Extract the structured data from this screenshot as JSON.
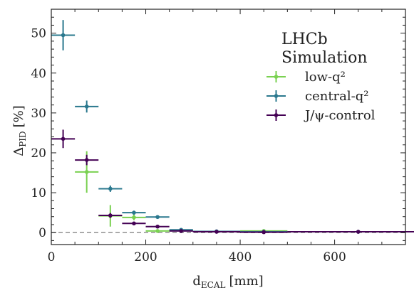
{
  "chart_data": {
    "type": "scatter",
    "title": "",
    "xlabel": "d",
    "xlabel_sub": "ECAL",
    "xlabel_unit": "[mm]",
    "ylabel": "Δ",
    "ylabel_sub": "PID",
    "ylabel_unit": "[%]",
    "xlim": [
      0,
      750
    ],
    "ylim": [
      -3,
      56
    ],
    "xticks": [
      0,
      200,
      400,
      600
    ],
    "yticks": [
      0,
      10,
      20,
      30,
      40,
      50
    ],
    "grid": false,
    "legend_placement": "top-right",
    "stamp": [
      "LHCb",
      "Simulation"
    ],
    "reference_line": {
      "y": 0,
      "style": "dashed",
      "color": "#999999"
    },
    "series": [
      {
        "name": "low-q²",
        "color": "#7ad151",
        "points": [
          {
            "x": 75,
            "xerr": 25,
            "y": 15.2,
            "yerr": 5.2
          },
          {
            "x": 125,
            "xerr": 25,
            "y": 4.2,
            "yerr": 2.7
          },
          {
            "x": 175,
            "xerr": 25,
            "y": 3.8,
            "yerr": 0.7
          },
          {
            "x": 225,
            "xerr": 25,
            "y": 0.4,
            "yerr": 0.4
          },
          {
            "x": 275,
            "xerr": 25,
            "y": 0.5,
            "yerr": 0.3
          },
          {
            "x": 450,
            "xerr": 50,
            "y": 0.4,
            "yerr": 0.3
          }
        ]
      },
      {
        "name": "central-q²",
        "color": "#2a788e",
        "points": [
          {
            "x": 25,
            "xerr": 25,
            "y": 49.5,
            "yerr": 3.8
          },
          {
            "x": 75,
            "xerr": 25,
            "y": 31.6,
            "yerr": 1.5
          },
          {
            "x": 125,
            "xerr": 25,
            "y": 11.0,
            "yerr": 0.8
          },
          {
            "x": 175,
            "xerr": 25,
            "y": 5.0,
            "yerr": 0.5
          },
          {
            "x": 225,
            "xerr": 25,
            "y": 3.9,
            "yerr": 0.4
          },
          {
            "x": 275,
            "xerr": 25,
            "y": 0.7,
            "yerr": 0.3
          },
          {
            "x": 350,
            "xerr": 50,
            "y": 0.3,
            "yerr": 0.2
          },
          {
            "x": 450,
            "xerr": 50,
            "y": 0.2,
            "yerr": 0.2
          },
          {
            "x": 650,
            "xerr": 150,
            "y": 0.2,
            "yerr": 0.2
          }
        ]
      },
      {
        "name": "J/ψ-control",
        "color": "#440154",
        "points": [
          {
            "x": 25,
            "xerr": 25,
            "y": 23.5,
            "yerr": 2.3
          },
          {
            "x": 75,
            "xerr": 25,
            "y": 18.2,
            "yerr": 1.3
          },
          {
            "x": 125,
            "xerr": 25,
            "y": 4.3,
            "yerr": 0.6
          },
          {
            "x": 175,
            "xerr": 25,
            "y": 2.3,
            "yerr": 0.3
          },
          {
            "x": 225,
            "xerr": 25,
            "y": 1.5,
            "yerr": 0.2
          },
          {
            "x": 275,
            "xerr": 25,
            "y": 0.4,
            "yerr": 0.1
          },
          {
            "x": 350,
            "xerr": 50,
            "y": 0.2,
            "yerr": 0.1
          },
          {
            "x": 450,
            "xerr": 50,
            "y": 0.1,
            "yerr": 0.1
          },
          {
            "x": 650,
            "xerr": 150,
            "y": 0.2,
            "yerr": 0.1
          }
        ]
      }
    ]
  }
}
